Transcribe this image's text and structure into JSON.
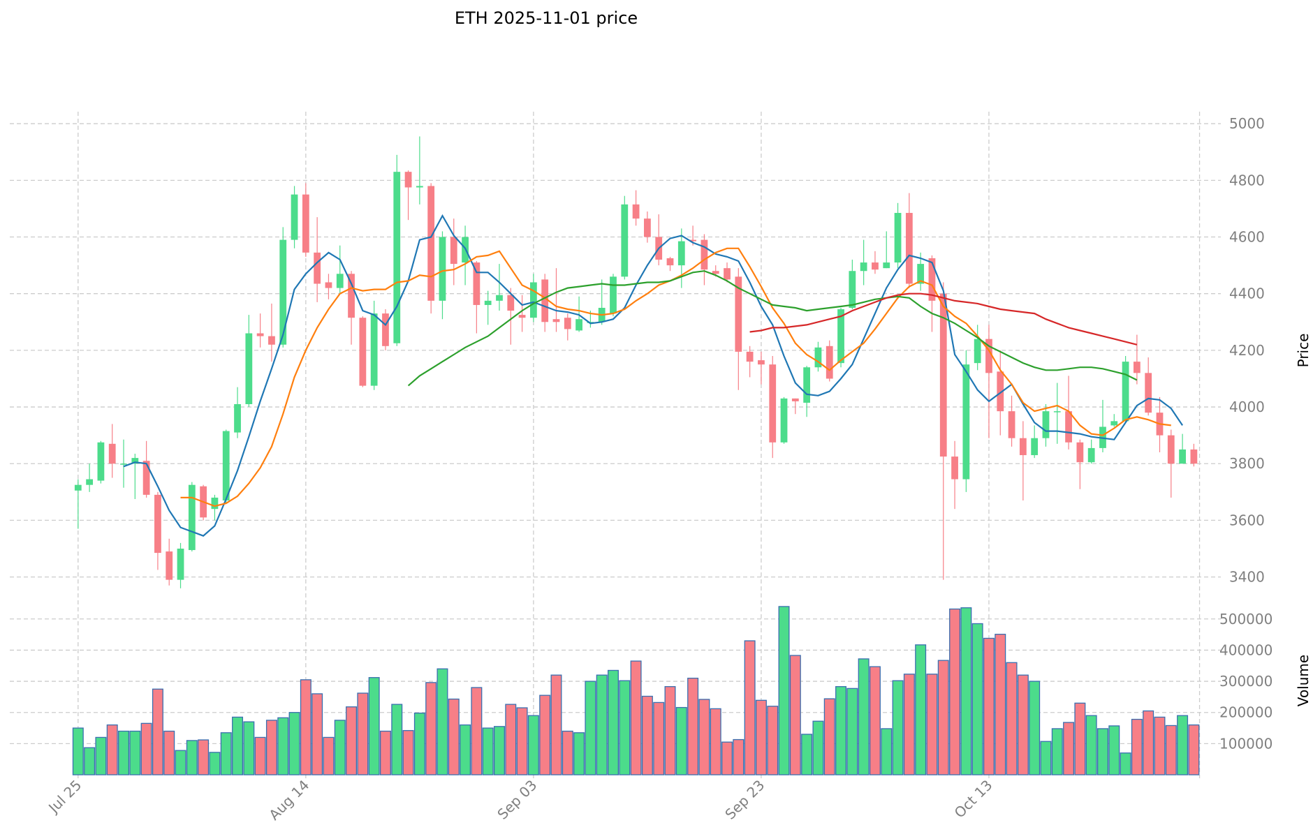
{
  "chart_data": {
    "type": "candlestick",
    "title": "ETH  2025-11-01  price",
    "price_axis_label": "Price",
    "volume_axis_label": "Volume",
    "price_ylim": [
      3330,
      5030
    ],
    "volume_ylim": [
      0,
      560000
    ],
    "price_ticks": [
      "3400",
      "3600",
      "3800",
      "4000",
      "4200",
      "4400",
      "4600",
      "4800",
      "5000"
    ],
    "volume_ticks": [
      "100000",
      "200000",
      "300000",
      "400000",
      "500000"
    ],
    "x_tick_labels": [
      "Jul 25",
      "Aug 14",
      "Sep 03",
      "Sep 23",
      "Oct 13"
    ],
    "x_tick_indices": [
      0,
      20,
      40,
      60,
      80
    ],
    "x_range": [
      -6,
      100
    ],
    "colors": {
      "up": "#4cdc8b",
      "down": "#f77f87",
      "volume_edge": "#3a6fb0",
      "ma5": "#1f77b4",
      "ma10": "#ff7f0e",
      "ma30": "#2ca02c",
      "ma60": "#d62728",
      "grid": "#cccccc",
      "tick_text": "#7f7f7f"
    },
    "candles": [
      [
        3705,
        3725,
        3570,
        3745,
        150000
      ],
      [
        3725,
        3745,
        3700,
        3800,
        87000
      ],
      [
        3740,
        3875,
        3730,
        3880,
        120000
      ],
      [
        3870,
        3800,
        3750,
        3940,
        160000
      ],
      [
        3800,
        3800,
        3715,
        3885,
        140000
      ],
      [
        3800,
        3820,
        3675,
        3835,
        140000
      ],
      [
        3810,
        3690,
        3680,
        3880,
        165000
      ],
      [
        3690,
        3485,
        3425,
        3700,
        275000
      ],
      [
        3490,
        3390,
        3370,
        3535,
        140000
      ],
      [
        3390,
        3500,
        3360,
        3520,
        78000
      ],
      [
        3495,
        3725,
        3490,
        3735,
        110000
      ],
      [
        3720,
        3610,
        3600,
        3725,
        112000
      ],
      [
        3640,
        3680,
        3600,
        3690,
        72000
      ],
      [
        3670,
        3915,
        3660,
        3920,
        135000
      ],
      [
        3910,
        4010,
        3890,
        4070,
        185000
      ],
      [
        4010,
        4260,
        4000,
        4325,
        170000
      ],
      [
        4260,
        4250,
        4210,
        4330,
        120000
      ],
      [
        4250,
        4220,
        4160,
        4365,
        175000
      ],
      [
        4220,
        4590,
        4210,
        4635,
        183000
      ],
      [
        4590,
        4750,
        4560,
        4780,
        200000
      ],
      [
        4750,
        4545,
        4530,
        4790,
        305000
      ],
      [
        4545,
        4435,
        4370,
        4670,
        260000
      ],
      [
        4440,
        4420,
        4380,
        4470,
        120000
      ],
      [
        4420,
        4470,
        4400,
        4570,
        175000
      ],
      [
        4470,
        4315,
        4220,
        4480,
        218000
      ],
      [
        4315,
        4075,
        4070,
        4320,
        262000
      ],
      [
        4075,
        4330,
        4060,
        4375,
        312000
      ],
      [
        4330,
        4215,
        4200,
        4345,
        140000
      ],
      [
        4225,
        4830,
        4215,
        4890,
        226000
      ],
      [
        4830,
        4775,
        4660,
        4835,
        142000
      ],
      [
        4775,
        4780,
        4715,
        4955,
        198000
      ],
      [
        4780,
        4375,
        4330,
        4790,
        296000
      ],
      [
        4375,
        4600,
        4310,
        4620,
        340000
      ],
      [
        4600,
        4505,
        4430,
        4665,
        243000
      ],
      [
        4510,
        4600,
        4430,
        4640,
        160000
      ],
      [
        4510,
        4360,
        4260,
        4515,
        280000
      ],
      [
        4360,
        4375,
        4290,
        4410,
        150000
      ],
      [
        4375,
        4395,
        4340,
        4505,
        155000
      ],
      [
        4395,
        4340,
        4220,
        4420,
        226000
      ],
      [
        4325,
        4315,
        4265,
        4395,
        215000
      ],
      [
        4315,
        4440,
        4300,
        4470,
        190000
      ],
      [
        4450,
        4300,
        4265,
        4470,
        255000
      ],
      [
        4310,
        4300,
        4265,
        4490,
        320000
      ],
      [
        4315,
        4275,
        4235,
        4330,
        140000
      ],
      [
        4270,
        4310,
        4265,
        4390,
        135000
      ],
      [
        4300,
        4300,
        4280,
        4340,
        300000
      ],
      [
        4300,
        4350,
        4290,
        4450,
        320000
      ],
      [
        4330,
        4460,
        4320,
        4470,
        335000
      ],
      [
        4460,
        4715,
        4450,
        4745,
        302000
      ],
      [
        4715,
        4665,
        4640,
        4765,
        365000
      ],
      [
        4665,
        4600,
        4580,
        4690,
        252000
      ],
      [
        4600,
        4520,
        4500,
        4680,
        232000
      ],
      [
        4525,
        4500,
        4480,
        4530,
        283000
      ],
      [
        4500,
        4585,
        4420,
        4630,
        216000
      ],
      [
        4590,
        4585,
        4570,
        4640,
        310000
      ],
      [
        4590,
        4485,
        4430,
        4610,
        242000
      ],
      [
        4480,
        4470,
        4460,
        4500,
        212000
      ],
      [
        4490,
        4450,
        4440,
        4510,
        105000
      ],
      [
        4460,
        4195,
        4060,
        4490,
        113000
      ],
      [
        4195,
        4160,
        4105,
        4215,
        430000
      ],
      [
        4165,
        4150,
        4080,
        4195,
        239000
      ],
      [
        4150,
        3875,
        3820,
        4180,
        220000
      ],
      [
        3875,
        4030,
        3870,
        4035,
        540000
      ],
      [
        4030,
        4020,
        3975,
        4030,
        383000
      ],
      [
        4015,
        4140,
        3965,
        4145,
        130000
      ],
      [
        4140,
        4210,
        4125,
        4230,
        172000
      ],
      [
        4215,
        4100,
        4090,
        4235,
        244000
      ],
      [
        4155,
        4345,
        4140,
        4350,
        283000
      ],
      [
        4350,
        4480,
        4345,
        4520,
        277000
      ],
      [
        4480,
        4510,
        4430,
        4590,
        372000
      ],
      [
        4510,
        4485,
        4470,
        4550,
        347000
      ],
      [
        4490,
        4510,
        4490,
        4620,
        148000
      ],
      [
        4510,
        4685,
        4490,
        4720,
        302000
      ],
      [
        4685,
        4435,
        4420,
        4755,
        323000
      ],
      [
        4435,
        4505,
        4410,
        4545,
        417000
      ],
      [
        4525,
        4375,
        4265,
        4535,
        323000
      ],
      [
        4400,
        3825,
        3390,
        4440,
        367000
      ],
      [
        3825,
        3745,
        3640,
        3880,
        532000
      ],
      [
        3745,
        4150,
        3700,
        4200,
        536000
      ],
      [
        4155,
        4240,
        4130,
        4290,
        485000
      ],
      [
        4240,
        4120,
        3890,
        4290,
        438000
      ],
      [
        4125,
        3985,
        3900,
        4200,
        451000
      ],
      [
        3985,
        3890,
        3860,
        4040,
        360000
      ],
      [
        3890,
        3830,
        3670,
        3950,
        320000
      ],
      [
        3830,
        3890,
        3820,
        3935,
        300000
      ],
      [
        3890,
        3985,
        3860,
        4010,
        107000
      ],
      [
        3985,
        3985,
        3870,
        4085,
        148000
      ],
      [
        3985,
        3875,
        3850,
        4110,
        168000
      ],
      [
        3875,
        3805,
        3710,
        3885,
        230000
      ],
      [
        3805,
        3855,
        3800,
        3885,
        190000
      ],
      [
        3855,
        3930,
        3840,
        4025,
        148000
      ],
      [
        3935,
        3950,
        3930,
        3975,
        157000
      ],
      [
        3950,
        4160,
        3945,
        4180,
        70000
      ],
      [
        4160,
        4120,
        4080,
        4255,
        178000
      ],
      [
        4120,
        3980,
        3970,
        4175,
        205000
      ],
      [
        3980,
        3900,
        3840,
        4035,
        185000
      ],
      [
        3900,
        3800,
        3680,
        3920,
        158000
      ],
      [
        3800,
        3850,
        3800,
        3905,
        190000
      ],
      [
        3850,
        3800,
        3790,
        3870,
        160000
      ]
    ],
    "moving_averages": [
      {
        "name": "MA5",
        "start": 4,
        "values": [
          3790,
          3805,
          3800,
          3720,
          3635,
          3575,
          3560,
          3545,
          3580,
          3675,
          3775,
          3895,
          4020,
          4135,
          4255,
          4415,
          4470,
          4510,
          4545,
          4520,
          4435,
          4340,
          4325,
          4290,
          4355,
          4445,
          4590,
          4600,
          4675,
          4605,
          4560,
          4475,
          4475,
          4440,
          4400,
          4360,
          4370,
          4355,
          4340,
          4335,
          4325,
          4295,
          4300,
          4310,
          4350,
          4430,
          4500,
          4560,
          4595,
          4605,
          4580,
          4565,
          4540,
          4530,
          4515,
          4440,
          4355,
          4290,
          4180,
          4085,
          4045,
          4040,
          4055,
          4100,
          4150,
          4240,
          4330,
          4420,
          4485,
          4535,
          4525,
          4510,
          4410,
          4185,
          4125,
          4060,
          4020,
          4050,
          4080,
          4010,
          3945,
          3915,
          3915,
          3910,
          3905,
          3895,
          3890,
          3885,
          3945,
          4005,
          4030,
          4025,
          3995,
          3935
        ]
      },
      {
        "name": "MA10",
        "start": 9,
        "values": [
          3680,
          3680,
          3665,
          3650,
          3660,
          3685,
          3730,
          3785,
          3860,
          3975,
          4105,
          4200,
          4280,
          4345,
          4400,
          4420,
          4410,
          4415,
          4415,
          4440,
          4445,
          4465,
          4460,
          4480,
          4485,
          4505,
          4530,
          4535,
          4550,
          4490,
          4430,
          4410,
          4385,
          4355,
          4345,
          4340,
          4330,
          4325,
          4330,
          4345,
          4375,
          4400,
          4430,
          4445,
          4465,
          4490,
          4520,
          4545,
          4560,
          4560,
          4495,
          4425,
          4350,
          4295,
          4225,
          4185,
          4160,
          4130,
          4165,
          4195,
          4225,
          4275,
          4330,
          4385,
          4425,
          4445,
          4430,
          4355,
          4320,
          4295,
          4250,
          4200,
          4130,
          4080,
          4015,
          3985,
          3995,
          4005,
          3985,
          3935,
          3905,
          3900,
          3925,
          3955,
          3965,
          3955,
          3940,
          3935
        ]
      },
      {
        "name": "MA30",
        "start": 29,
        "values": [
          4075,
          4110,
          4135,
          4160,
          4185,
          4210,
          4230,
          4250,
          4280,
          4310,
          4340,
          4365,
          4385,
          4405,
          4420,
          4425,
          4430,
          4435,
          4430,
          4430,
          4435,
          4440,
          4440,
          4445,
          4460,
          4475,
          4480,
          4465,
          4445,
          4420,
          4400,
          4380,
          4360,
          4355,
          4350,
          4340,
          4345,
          4350,
          4355,
          4360,
          4370,
          4380,
          4385,
          4390,
          4385,
          4355,
          4330,
          4315,
          4295,
          4270,
          4245,
          4215,
          4195,
          4175,
          4155,
          4140,
          4130,
          4130,
          4135,
          4140,
          4140,
          4135,
          4125,
          4115,
          4095
        ]
      },
      {
        "name": "MA60",
        "start": 59,
        "values": [
          4265,
          4270,
          4280,
          4280,
          4285,
          4290,
          4300,
          4310,
          4320,
          4340,
          4355,
          4370,
          4385,
          4395,
          4400,
          4400,
          4395,
          4385,
          4375,
          4370,
          4365,
          4355,
          4345,
          4340,
          4335,
          4330,
          4310,
          4295,
          4280,
          4270,
          4260,
          4250,
          4240,
          4230,
          4220
        ]
      }
    ]
  }
}
